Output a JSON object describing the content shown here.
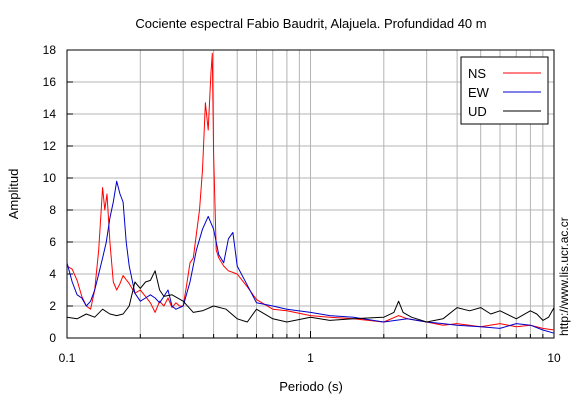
{
  "chart_data": {
    "type": "line",
    "title": "Cociente espectral Fabio Baudrit, Alajuela. Profundidad 40 m",
    "xlabel": "Periodo (s)",
    "ylabel": "Amplitud",
    "x_scale": "log",
    "xlim": [
      0.1,
      10
    ],
    "ylim": [
      0,
      18
    ],
    "x_ticks": [
      0.1,
      1,
      10
    ],
    "x_tick_labels": [
      "0.1",
      "1",
      "10"
    ],
    "y_ticks": [
      0,
      2,
      4,
      6,
      8,
      10,
      12,
      14,
      16,
      18
    ],
    "y_tick_labels": [
      "0",
      "2",
      "4",
      "6",
      "8",
      "10",
      "12",
      "14",
      "16",
      "18"
    ],
    "grid": true,
    "legend_position": "top-right",
    "credit": "http://www.lis.ucr.ac.cr",
    "series": [
      {
        "name": "NS",
        "color": "#ff0000",
        "x": [
          0.1,
          0.105,
          0.11,
          0.115,
          0.12,
          0.125,
          0.13,
          0.135,
          0.14,
          0.143,
          0.146,
          0.15,
          0.155,
          0.16,
          0.165,
          0.17,
          0.18,
          0.19,
          0.2,
          0.21,
          0.22,
          0.23,
          0.24,
          0.25,
          0.26,
          0.27,
          0.28,
          0.29,
          0.3,
          0.31,
          0.32,
          0.33,
          0.34,
          0.35,
          0.36,
          0.37,
          0.38,
          0.39,
          0.395,
          0.4,
          0.41,
          0.42,
          0.44,
          0.46,
          0.5,
          0.55,
          0.6,
          0.7,
          0.8,
          1.0,
          1.2,
          1.5,
          2.0,
          2.3,
          2.5,
          3.0,
          3.5,
          4.0,
          5.0,
          6.0,
          7.0,
          8.0,
          9.0,
          10.0
        ],
        "y": [
          4.5,
          4.3,
          3.6,
          2.6,
          2.0,
          1.8,
          3.0,
          5.5,
          9.4,
          8.0,
          9.0,
          6.0,
          3.5,
          3.0,
          3.4,
          3.9,
          3.4,
          2.8,
          3.0,
          2.6,
          2.2,
          1.6,
          2.3,
          2.0,
          2.5,
          1.9,
          2.2,
          2.0,
          2.0,
          3.3,
          4.7,
          5.0,
          6.5,
          8.0,
          10.5,
          14.7,
          13.0,
          16.5,
          17.8,
          11.5,
          5.5,
          5.0,
          4.5,
          4.2,
          4.0,
          3.2,
          2.4,
          1.8,
          1.7,
          1.4,
          1.3,
          1.2,
          1.0,
          1.4,
          1.2,
          1.0,
          0.8,
          0.9,
          0.7,
          0.9,
          0.7,
          0.8,
          0.6,
          0.5
        ]
      },
      {
        "name": "EW",
        "color": "#0000cc",
        "x": [
          0.1,
          0.105,
          0.11,
          0.115,
          0.12,
          0.125,
          0.13,
          0.135,
          0.14,
          0.145,
          0.15,
          0.155,
          0.16,
          0.165,
          0.17,
          0.175,
          0.18,
          0.19,
          0.2,
          0.21,
          0.22,
          0.23,
          0.24,
          0.25,
          0.26,
          0.27,
          0.28,
          0.3,
          0.32,
          0.34,
          0.36,
          0.38,
          0.4,
          0.42,
          0.44,
          0.46,
          0.48,
          0.5,
          0.55,
          0.6,
          0.7,
          0.8,
          1.0,
          1.2,
          1.5,
          2.0,
          2.5,
          3.0,
          3.5,
          4.0,
          5.0,
          6.0,
          7.0,
          8.0,
          9.0,
          10.0
        ],
        "y": [
          4.7,
          3.5,
          2.7,
          2.5,
          2.0,
          2.3,
          3.0,
          4.0,
          5.0,
          6.0,
          7.5,
          8.5,
          9.8,
          9.0,
          8.5,
          6.0,
          4.5,
          2.8,
          2.3,
          2.5,
          2.7,
          2.5,
          2.2,
          2.6,
          3.0,
          2.0,
          1.8,
          2.0,
          3.5,
          5.5,
          6.8,
          7.6,
          6.8,
          5.2,
          4.7,
          6.2,
          6.6,
          4.5,
          3.3,
          2.2,
          2.0,
          1.8,
          1.6,
          1.4,
          1.3,
          1.0,
          1.2,
          1.0,
          0.9,
          0.8,
          0.7,
          0.6,
          0.9,
          0.8,
          0.5,
          0.3
        ]
      },
      {
        "name": "UD",
        "color": "#000000",
        "x": [
          0.1,
          0.11,
          0.12,
          0.13,
          0.14,
          0.15,
          0.16,
          0.17,
          0.18,
          0.19,
          0.2,
          0.21,
          0.22,
          0.23,
          0.24,
          0.25,
          0.27,
          0.3,
          0.33,
          0.36,
          0.4,
          0.45,
          0.5,
          0.55,
          0.6,
          0.7,
          0.8,
          1.0,
          1.2,
          1.5,
          2.0,
          2.2,
          2.3,
          2.4,
          2.6,
          3.0,
          3.5,
          4.0,
          4.5,
          5.0,
          5.5,
          6.0,
          7.0,
          8.0,
          8.5,
          9.0,
          9.5,
          10.0
        ],
        "y": [
          1.3,
          1.2,
          1.5,
          1.3,
          1.8,
          1.5,
          1.4,
          1.5,
          2.0,
          3.5,
          3.1,
          3.5,
          3.6,
          4.2,
          3.0,
          2.6,
          2.7,
          2.3,
          1.6,
          1.7,
          2.0,
          1.8,
          1.2,
          1.0,
          1.8,
          1.2,
          1.0,
          1.3,
          1.1,
          1.2,
          1.3,
          1.6,
          2.3,
          1.6,
          1.3,
          1.0,
          1.2,
          1.9,
          1.7,
          1.9,
          1.5,
          1.7,
          1.2,
          1.7,
          1.5,
          1.1,
          1.3,
          1.9
        ]
      }
    ]
  }
}
